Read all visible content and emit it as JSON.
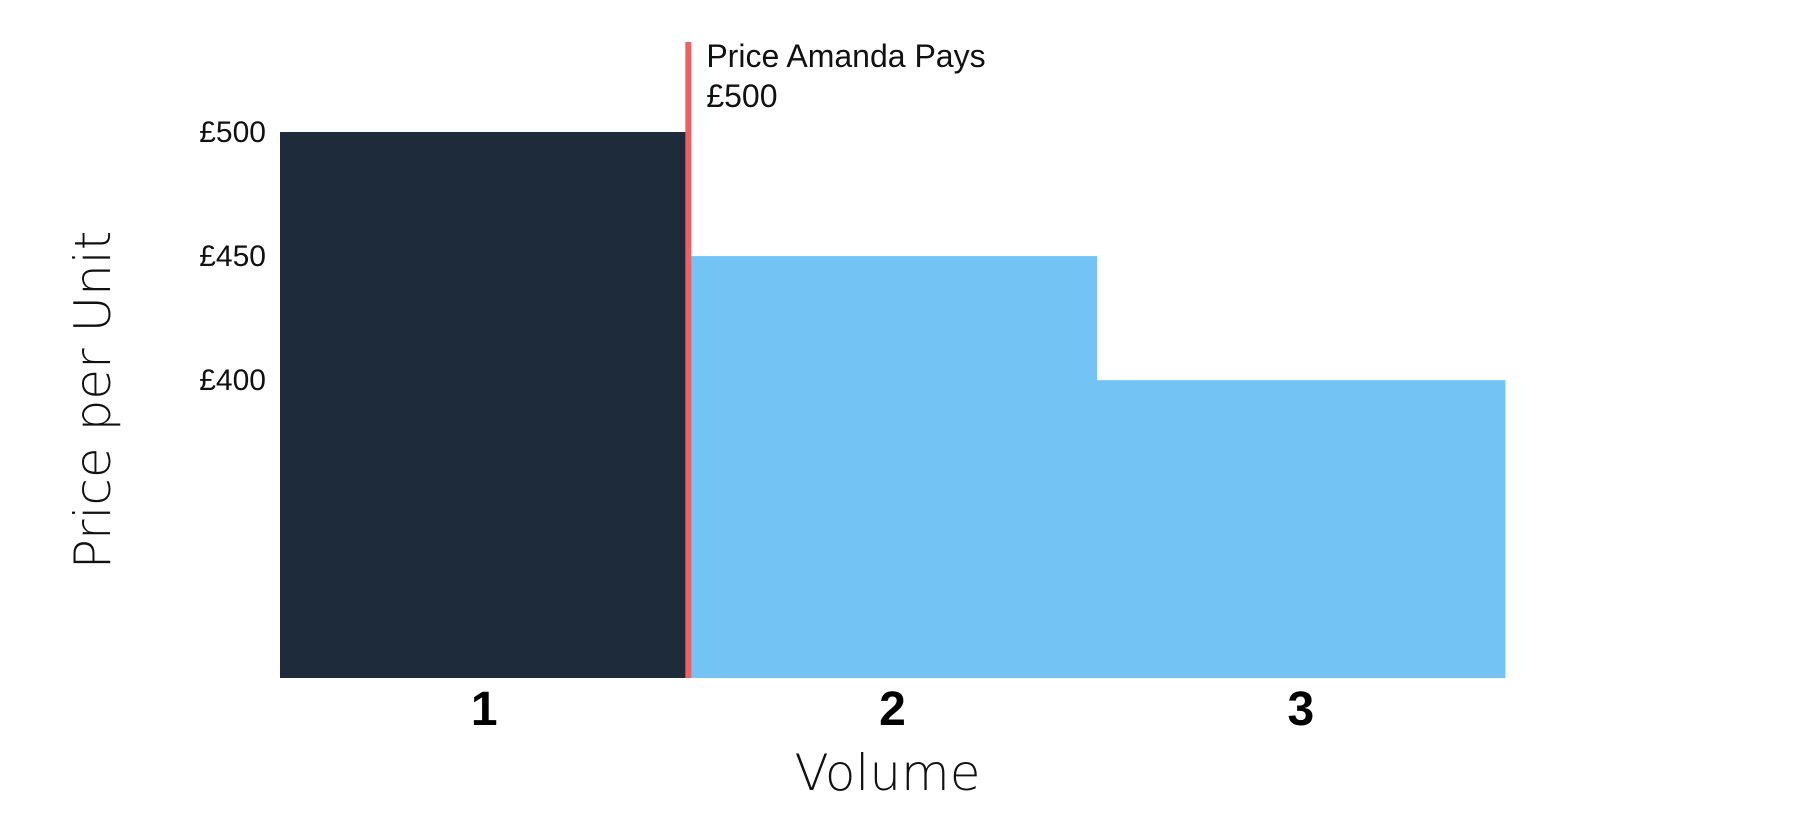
{
  "chart_data": {
    "type": "bar",
    "categories": [
      "1",
      "2",
      "3"
    ],
    "values": [
      500,
      450,
      400
    ],
    "xlabel": "Volume",
    "ylabel": "Price per Unit",
    "yticks": [
      "£500",
      "£450",
      "£400"
    ],
    "ytick_values": [
      500,
      450,
      400
    ],
    "ylim": [
      280,
      500
    ],
    "grid": false,
    "bar_colors": [
      "#1e2b3b",
      "#73c3f4",
      "#73c3f4"
    ],
    "annotation": {
      "label": "Price Amanda Pays",
      "value_text": "£500",
      "color": "#f06060",
      "position_between_categories": [
        "1",
        "2"
      ]
    }
  }
}
